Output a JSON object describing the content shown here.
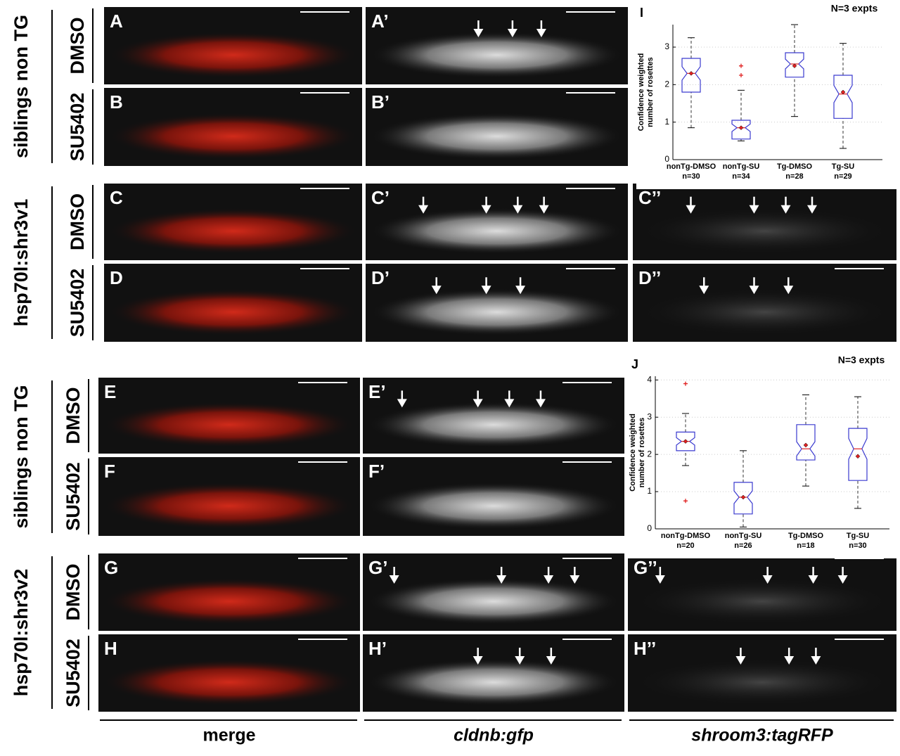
{
  "figure": {
    "groups": [
      "siblings non TG",
      "hsp70l:shr3v1",
      "siblings non TG",
      "hsp70l:shr3v2"
    ],
    "rows": [
      {
        "label": "DMSO",
        "panels": [
          "A",
          "A’"
        ]
      },
      {
        "label": "SU5402",
        "panels": [
          "B",
          "B’"
        ]
      },
      {
        "label": "DMSO",
        "panels": [
          "C",
          "C’",
          "C’’"
        ]
      },
      {
        "label": "SU5402",
        "panels": [
          "D",
          "D’",
          "D’’"
        ]
      },
      {
        "label": "DMSO",
        "panels": [
          "E",
          "E’"
        ]
      },
      {
        "label": "SU5402",
        "panels": [
          "F",
          "F’"
        ]
      },
      {
        "label": "DMSO",
        "panels": [
          "G",
          "G’",
          "G’’"
        ]
      },
      {
        "label": "SU5402",
        "panels": [
          "H",
          "H’",
          "H’’"
        ]
      }
    ],
    "columns": [
      "merge",
      "cldnb:gfp",
      "shroom3:tagRFP"
    ]
  },
  "chart_data": [
    {
      "type": "box",
      "label": "I",
      "annotation": "N=3 expts",
      "ylabel": [
        "Confidence weighted",
        "number of rosettes"
      ],
      "categories": [
        "nonTg-DMSO",
        "nonTg-SU",
        "Tg-DMSO",
        "Tg-SU"
      ],
      "n_labels": [
        "n=30",
        "n=34",
        "n=28",
        "n=29"
      ],
      "ylim": [
        0,
        3.6
      ],
      "yticks": [
        0,
        1,
        2,
        3
      ],
      "grid": true,
      "box_color": "#3a3acf",
      "median_color": "#e02020",
      "whisker_color": "#333333",
      "boxes": [
        {
          "min": 0.85,
          "q1": 1.8,
          "median": 2.3,
          "q3": 2.7,
          "max": 3.25,
          "mean": 2.3,
          "outliers": []
        },
        {
          "min": 0.5,
          "q1": 0.55,
          "median": 0.85,
          "q3": 1.05,
          "max": 1.85,
          "mean": 0.85,
          "outliers": [
            2.5,
            2.25
          ]
        },
        {
          "min": 1.15,
          "q1": 2.2,
          "median": 2.55,
          "q3": 2.85,
          "max": 3.6,
          "mean": 2.5,
          "outliers": []
        },
        {
          "min": 0.3,
          "q1": 1.1,
          "median": 1.75,
          "q3": 2.25,
          "max": 3.1,
          "mean": 1.8,
          "outliers": []
        }
      ]
    },
    {
      "type": "box",
      "label": "J",
      "annotation": "N=3 expts",
      "ylabel": [
        "Confidence weighted",
        "number of rosettes"
      ],
      "categories": [
        "nonTg-DMSO",
        "nonTg-SU",
        "Tg-DMSO",
        "Tg-SU"
      ],
      "n_labels": [
        "n=20",
        "n=26",
        "n=18",
        "n=30"
      ],
      "ylim": [
        0,
        4.1
      ],
      "yticks": [
        0,
        1,
        2,
        3,
        4
      ],
      "grid": true,
      "box_color": "#3a3acf",
      "median_color": "#e02020",
      "whisker_color": "#333333",
      "boxes": [
        {
          "min": 1.7,
          "q1": 2.1,
          "median": 2.35,
          "q3": 2.6,
          "max": 3.1,
          "mean": 2.35,
          "outliers": [
            3.9,
            0.75
          ]
        },
        {
          "min": 0.05,
          "q1": 0.4,
          "median": 0.85,
          "q3": 1.25,
          "max": 2.1,
          "mean": 0.85,
          "outliers": []
        },
        {
          "min": 1.15,
          "q1": 1.85,
          "median": 2.15,
          "q3": 2.8,
          "max": 3.6,
          "mean": 2.25,
          "outliers": []
        },
        {
          "min": 0.55,
          "q1": 1.3,
          "median": 2.15,
          "q3": 2.7,
          "max": 3.55,
          "mean": 1.95,
          "outliers": []
        }
      ]
    }
  ]
}
